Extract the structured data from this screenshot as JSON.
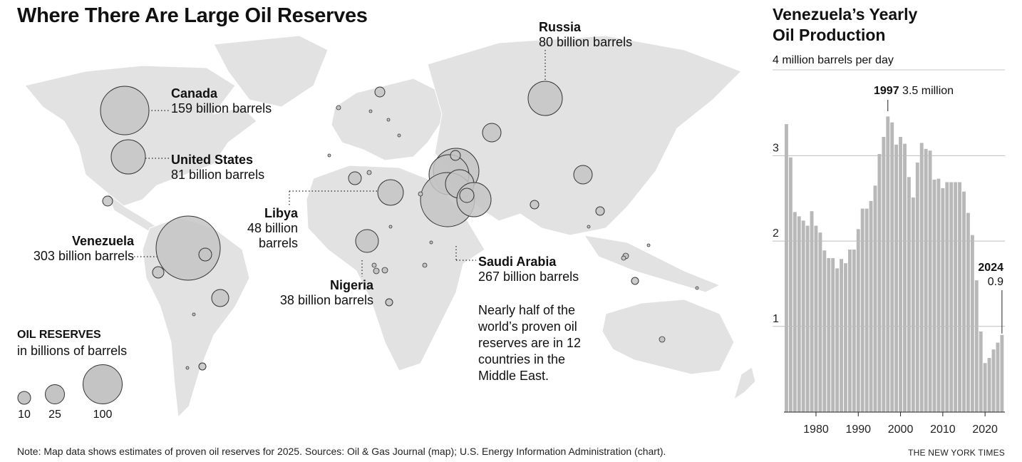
{
  "map": {
    "title": "Where There Are Large Oil Reserves",
    "labels": {
      "russia": {
        "name": "Russia",
        "value": "80 billion barrels"
      },
      "canada": {
        "name": "Canada",
        "value": "159 billion barrels"
      },
      "united_states": {
        "name": "United States",
        "value": "81 billion barrels"
      },
      "libya": {
        "name": "Libya",
        "value_line1": "48 billion",
        "value_line2": "barrels"
      },
      "venezuela": {
        "name": "Venezuela",
        "value": "303 billion barrels"
      },
      "nigeria": {
        "name": "Nigeria",
        "value": "38 billion barrels"
      },
      "saudi_arabia": {
        "name": "Saudi Arabia",
        "value": "267 billion barrels"
      }
    },
    "annotation": [
      "Nearly half of the",
      "world’s proven oil",
      "reserves are in 12",
      "countries in the",
      "Middle East."
    ],
    "legend": {
      "title": "OIL RESERVES",
      "subtitle": "in billions of barrels",
      "sizes": [
        "10",
        "25",
        "100"
      ]
    },
    "colors": {
      "land": "#e0e0e0",
      "bubble": "#c4c4c4",
      "bubble_stroke": "#333333"
    }
  },
  "chart_data": {
    "type": "bar",
    "title": "Venezuela’s Yearly Oil Production",
    "ylabel": "4 million barrels per day",
    "xlabel": "",
    "ylim": [
      0,
      4
    ],
    "yticks": [
      "1",
      "2",
      "3"
    ],
    "xticks": [
      "1980",
      "1990",
      "2000",
      "2010",
      "2020"
    ],
    "annotations": [
      {
        "year": "1997",
        "label": "3.5 million"
      },
      {
        "year": "2024",
        "label": "0.9"
      }
    ],
    "categories": [
      1973,
      1974,
      1975,
      1976,
      1977,
      1978,
      1979,
      1980,
      1981,
      1982,
      1983,
      1984,
      1985,
      1986,
      1987,
      1988,
      1989,
      1990,
      1991,
      1992,
      1993,
      1994,
      1995,
      1996,
      1997,
      1998,
      1999,
      2000,
      2001,
      2002,
      2003,
      2004,
      2005,
      2006,
      2007,
      2008,
      2009,
      2010,
      2011,
      2012,
      2013,
      2014,
      2015,
      2016,
      2017,
      2018,
      2019,
      2020,
      2021,
      2022,
      2023,
      2024
    ],
    "values": [
      3.37,
      2.98,
      2.34,
      2.29,
      2.24,
      2.18,
      2.35,
      2.18,
      2.1,
      1.89,
      1.8,
      1.8,
      1.68,
      1.79,
      1.74,
      1.9,
      1.9,
      2.14,
      2.38,
      2.38,
      2.47,
      2.65,
      3.02,
      3.22,
      3.46,
      3.39,
      3.13,
      3.22,
      3.14,
      2.75,
      2.51,
      2.92,
      3.15,
      3.08,
      3.06,
      2.72,
      2.73,
      2.62,
      2.69,
      2.69,
      2.69,
      2.69,
      2.58,
      2.33,
      2.07,
      1.54,
      0.94,
      0.57,
      0.63,
      0.73,
      0.81,
      0.9
    ],
    "bar_color": "#b8b8b8"
  },
  "footer": {
    "note": "Note: Map data shows estimates of proven oil reserves for 2025. Sources: Oil & Gas Journal (map); U.S. Energy Information Administration (chart).",
    "credit": "THE NEW YORK TIMES"
  }
}
